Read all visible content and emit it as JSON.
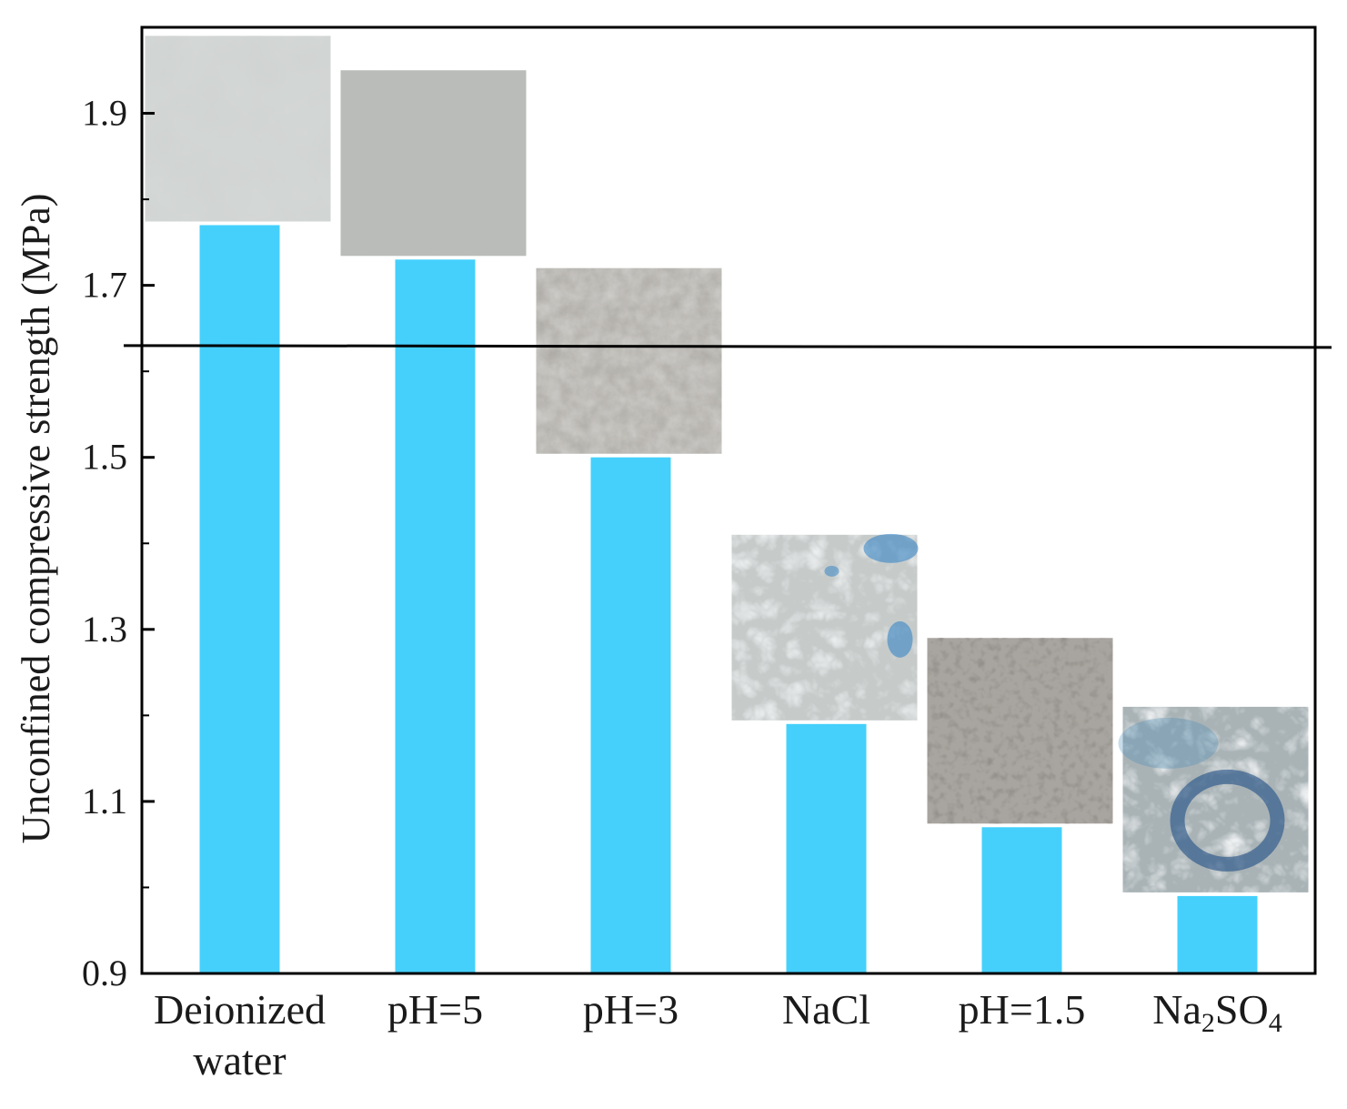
{
  "chart_data": {
    "type": "bar",
    "categories": [
      "Deionized water",
      "pH=5",
      "pH=3",
      "NaCl",
      "pH=1.5",
      "Na2SO4"
    ],
    "category_labels": [
      {
        "lines": [
          "Deionized",
          "water"
        ]
      },
      {
        "lines": [
          "pH=5"
        ]
      },
      {
        "lines": [
          "pH=3"
        ]
      },
      {
        "lines": [
          "NaCl"
        ]
      },
      {
        "lines": [
          "pH=1.5"
        ]
      },
      {
        "parts": [
          {
            "text": "Na",
            "sub": false
          },
          {
            "text": "2",
            "sub": true
          },
          {
            "text": "SO",
            "sub": false
          },
          {
            "text": "4",
            "sub": true
          }
        ]
      }
    ],
    "values": [
      1.77,
      1.73,
      1.5,
      1.19,
      1.07,
      0.99
    ],
    "ylabel": "Unconfined compressive strength (MPa)",
    "ylim": [
      0.9,
      2.0
    ],
    "yticks_major": [
      0.9,
      1.1,
      1.3,
      1.5,
      1.7,
      1.9
    ],
    "ytick_labels": [
      "0.9",
      "1.1",
      "1.3",
      "1.5",
      "1.7",
      "1.9"
    ],
    "yticks_minor": [
      1.0,
      1.2,
      1.4,
      1.6,
      1.8
    ],
    "reference_line": 1.63,
    "grid": false,
    "bar_color": "#45d0fc",
    "sample_photos": [
      {
        "texture": "smooth",
        "base": "#d4d8d6"
      },
      {
        "texture": "smooth",
        "base": "#b9bcb8"
      },
      {
        "texture": "porous",
        "base": "#aeaba5"
      },
      {
        "texture": "cracked-blue",
        "base": "#c6cbca"
      },
      {
        "texture": "pitted",
        "base": "#a8a49f"
      },
      {
        "texture": "cracked-blue-ring",
        "base": "#a9b3b6"
      }
    ]
  }
}
